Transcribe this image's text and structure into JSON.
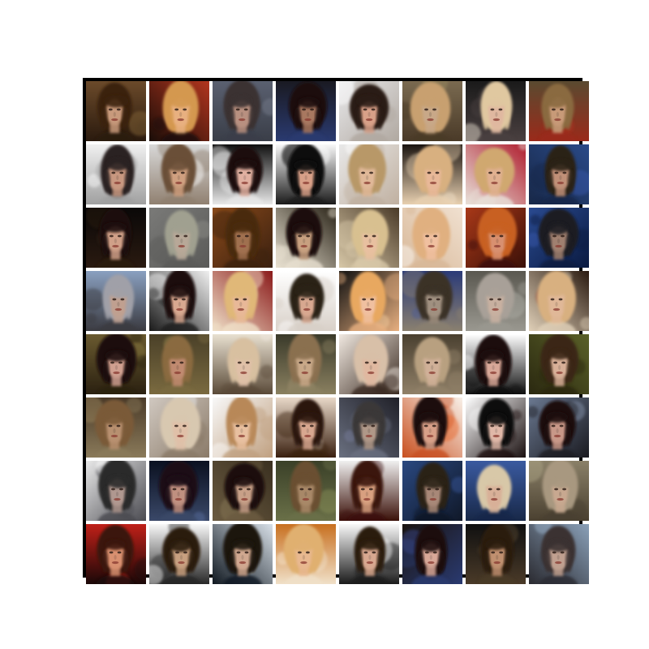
{
  "figure": {
    "rows": 8,
    "cols": 8,
    "frame_color": "#000000",
    "gutter_color": "#ffffff"
  },
  "tiles": [
    {
      "bg": "#6b4a2a",
      "bg2": "#2a1a0e",
      "hair": "#3a2210",
      "skin": "#c89a7c",
      "accent": "#8a6a3a"
    },
    {
      "bg": "#b2351e",
      "bg2": "#1a0d08",
      "hair": "#d49850",
      "skin": "#e8b080",
      "accent": "#f0f0f0"
    },
    {
      "bg": "#5a6070",
      "bg2": "#3a3e48",
      "hair": "#3a3030",
      "skin": "#b89080",
      "accent": "#7a8090"
    },
    {
      "bg": "#1a1a22",
      "bg2": "#2a3a70",
      "hair": "#1a1010",
      "skin": "#a87860",
      "accent": "#3a4a90"
    },
    {
      "bg": "#e8e8ea",
      "bg2": "#b0a8a0",
      "hair": "#2a1a12",
      "skin": "#d8a088",
      "accent": "#ffffff"
    },
    {
      "bg": "#7a6a50",
      "bg2": "#4a3a28",
      "hair": "#c8a070",
      "skin": "#c8a888",
      "accent": "#9a8a60"
    },
    {
      "bg": "#1a1a1a",
      "bg2": "#4a4040",
      "hair": "#e0c8a0",
      "skin": "#e0b8a0",
      "accent": "#f0e8d8"
    },
    {
      "bg": "#5a4a30",
      "bg2": "#9a2a1a",
      "hair": "#8a6a40",
      "skin": "#c89a78",
      "accent": "#b03020"
    },
    {
      "bg": "#f0f0f0",
      "bg2": "#a0a0a0",
      "hair": "#2a2020",
      "skin": "#c89880",
      "accent": "#ffffff"
    },
    {
      "bg": "#d8d8d8",
      "bg2": "#908070",
      "hair": "#6a5038",
      "skin": "#d0a080",
      "accent": "#ffffff"
    },
    {
      "bg": "#101010",
      "bg2": "#e8e8e8",
      "hair": "#1a1010",
      "skin": "#e0b0a0",
      "accent": "#f0f0f0"
    },
    {
      "bg": "#f8f8f8",
      "bg2": "#1a1a1a",
      "hair": "#0a0808",
      "skin": "#d8a088",
      "accent": "#ffffff"
    },
    {
      "bg": "#e8e8e8",
      "bg2": "#c0b0a0",
      "hair": "#b89868",
      "skin": "#e0b898",
      "accent": "#ffffff"
    },
    {
      "bg": "#1a1410",
      "bg2": "#e8d0b0",
      "hair": "#d8b080",
      "skin": "#e8b898",
      "accent": "#f0e0c8"
    },
    {
      "bg": "#b02030",
      "bg2": "#e8e0d8",
      "hair": "#d0a870",
      "skin": "#e0b090",
      "accent": "#c83040"
    },
    {
      "bg": "#2a4a88",
      "bg2": "#182848",
      "hair": "#2a2018",
      "skin": "#c09078",
      "accent": "#3a5ab0"
    },
    {
      "bg": "#0a0808",
      "bg2": "#2a1a10",
      "hair": "#1a1008",
      "skin": "#d0a088",
      "accent": "#3a2a1a"
    },
    {
      "bg": "#7a7a78",
      "bg2": "#5a5a58",
      "hair": "#a0a090",
      "skin": "#b8a898",
      "accent": "#90908a"
    },
    {
      "bg": "#8a4a1a",
      "bg2": "#3a2010",
      "hair": "#4a2a10",
      "skin": "#a07050",
      "accent": "#b06a2a"
    },
    {
      "bg": "#2a2418",
      "bg2": "#e8e0d0",
      "hair": "#1a1008",
      "skin": "#c8a080",
      "accent": "#f0e8d8"
    },
    {
      "bg": "#4a3a28",
      "bg2": "#d8c8a8",
      "hair": "#d8c090",
      "skin": "#e8c0a0",
      "accent": "#f0e0c0"
    },
    {
      "bg": "#f0e0d0",
      "bg2": "#d8b898",
      "hair": "#e0b080",
      "skin": "#f0c0a0",
      "accent": "#ffffff"
    },
    {
      "bg": "#a83818",
      "bg2": "#3a1008",
      "hair": "#c86020",
      "skin": "#d89070",
      "accent": "#e07030"
    },
    {
      "bg": "#2a4a90",
      "bg2": "#0a1a40",
      "hair": "#1a1a20",
      "skin": "#a08070",
      "accent": "#3a5ab0"
    },
    {
      "bg": "#8aa0c0",
      "bg2": "#3a3a40",
      "hair": "#a0a0a8",
      "skin": "#c0a090",
      "accent": "#c0d0e8"
    },
    {
      "bg": "#f0f0f0",
      "bg2": "#1a1a1a",
      "hair": "#1a1010",
      "skin": "#d8a890",
      "accent": "#ffffff"
    },
    {
      "bg": "#8a1a1a",
      "bg2": "#f0e0c8",
      "hair": "#e0b878",
      "skin": "#e8b898",
      "accent": "#fff0d8"
    },
    {
      "bg": "#ffffff",
      "bg2": "#d8d0c8",
      "hair": "#2a2018",
      "skin": "#d8a890",
      "accent": "#ffffff"
    },
    {
      "bg": "#101010",
      "bg2": "#e8b080",
      "hair": "#e8a860",
      "skin": "#f0c0a0",
      "accent": "#f8d0a0"
    },
    {
      "bg": "#2a3a78",
      "bg2": "#8a8070",
      "hair": "#3a3028",
      "skin": "#a09080",
      "accent": "#4a5a98"
    },
    {
      "bg": "#5a5850",
      "bg2": "#9a9890",
      "hair": "#a8a098",
      "skin": "#c8b0a0",
      "accent": "#b0b0a8"
    },
    {
      "bg": "#2a1a10",
      "bg2": "#e0d0b8",
      "hair": "#d8b080",
      "skin": "#e0b898",
      "accent": "#8a2a1a"
    },
    {
      "bg": "#6a5a30",
      "bg2": "#2a2010",
      "hair": "#1a1008",
      "skin": "#d0a090",
      "accent": "#8a7a40"
    },
    {
      "bg": "#4a4028",
      "bg2": "#7a6a40",
      "hair": "#8a6a40",
      "skin": "#c08a70",
      "accent": "#9a8a50"
    },
    {
      "bg": "#e8e0d0",
      "bg2": "#5a4a38",
      "hair": "#d8c0a0",
      "skin": "#e0c0a8",
      "accent": "#f0e8e0"
    },
    {
      "bg": "#3a3a2a",
      "bg2": "#8a8060",
      "hair": "#8a7050",
      "skin": "#c8a888",
      "accent": "#a09070"
    },
    {
      "bg": "#f0e8e0",
      "bg2": "#3a2a20",
      "hair": "#d8c0a8",
      "skin": "#e0b8a0",
      "accent": "#fff8f0"
    },
    {
      "bg": "#4a4030",
      "bg2": "#908068",
      "hair": "#b8a080",
      "skin": "#d0b098",
      "accent": "#a09078"
    },
    {
      "bg": "#ffffff",
      "bg2": "#101010",
      "hair": "#1a1010",
      "skin": "#d8a898",
      "accent": "#f8f8f8"
    },
    {
      "bg": "#5a6028",
      "bg2": "#2a2810",
      "hair": "#3a2818",
      "skin": "#d8b098",
      "accent": "#8a8a3a"
    },
    {
      "bg": "#4a3a28",
      "bg2": "#8a7a5a",
      "hair": "#7a5a38",
      "skin": "#b89070",
      "accent": "#a08a60"
    },
    {
      "bg": "#d0c8c0",
      "bg2": "#8a7a68",
      "hair": "#d8c8b0",
      "skin": "#e0c0a8",
      "accent": "#f0f0f0"
    },
    {
      "bg": "#f8f8f8",
      "bg2": "#c0a080",
      "hair": "#b88858",
      "skin": "#e8c0a0",
      "accent": "#ffffff"
    },
    {
      "bg": "#e8d8c8",
      "bg2": "#3a2010",
      "hair": "#2a1810",
      "skin": "#d8a890",
      "accent": "#f0e8e0"
    },
    {
      "bg": "#202028",
      "bg2": "#6a7080",
      "hair": "#3a3838",
      "skin": "#b09888",
      "accent": "#7a80a0"
    },
    {
      "bg": "#f8f0e8",
      "bg2": "#c85020",
      "hair": "#1a1008",
      "skin": "#d8a088",
      "accent": "#e86020"
    },
    {
      "bg": "#ffffff",
      "bg2": "#1a1010",
      "hair": "#0a0808",
      "skin": "#e0b8a8",
      "accent": "#f8f8f8"
    },
    {
      "bg": "#6a7890",
      "bg2": "#1a1a20",
      "hair": "#1a1010",
      "skin": "#c89888",
      "accent": "#8a98b0"
    },
    {
      "bg": "#e8e8e8",
      "bg2": "#4a4a50",
      "hair": "#2a2a2a",
      "skin": "#b09890",
      "accent": "#ffffff"
    },
    {
      "bg": "#0a1020",
      "bg2": "#3a4868",
      "hair": "#1a1018",
      "skin": "#c09080",
      "accent": "#5a70a0"
    },
    {
      "bg": "#3a3020",
      "bg2": "#6a5a40",
      "hair": "#1a1008",
      "skin": "#c8a088",
      "accent": "#8a7a58"
    },
    {
      "bg": "#3a4028",
      "bg2": "#6a7048",
      "hair": "#6a5030",
      "skin": "#a88868",
      "accent": "#8a9058"
    },
    {
      "bg": "#f0f0f0",
      "bg2": "#3a1008",
      "hair": "#3a1808",
      "skin": "#d8a080",
      "accent": "#ffffff"
    },
    {
      "bg": "#2a4880",
      "bg2": "#101828",
      "hair": "#2a2018",
      "skin": "#a88878",
      "accent": "#3a5aa0"
    },
    {
      "bg": "#3a5aa0",
      "bg2": "#182848",
      "hair": "#d8c8a8",
      "skin": "#d8b098",
      "accent": "#4a6ab8"
    },
    {
      "bg": "#8a8068",
      "bg2": "#4a4030",
      "hair": "#a89880",
      "skin": "#c8a890",
      "accent": "#b0a888"
    },
    {
      "bg": "#c02018",
      "bg2": "#1a0808",
      "hair": "#3a1808",
      "skin": "#d89070",
      "accent": "#e83020"
    },
    {
      "bg": "#f8f8f8",
      "bg2": "#282828",
      "hair": "#2a1a10",
      "skin": "#c8a080",
      "accent": "#ffffff"
    },
    {
      "bg": "#d8e0e8",
      "bg2": "#101820",
      "hair": "#1a1410",
      "skin": "#d0a890",
      "accent": "#e8f0f8"
    },
    {
      "bg": "#c87020",
      "bg2": "#f0e0c8",
      "hair": "#e0b070",
      "skin": "#e8b890",
      "accent": "#f8e8d0"
    },
    {
      "bg": "#f8f8f8",
      "bg2": "#1a1a1a",
      "hair": "#2a1a10",
      "skin": "#d8a890",
      "accent": "#ffffff"
    },
    {
      "bg": "#1a1410",
      "bg2": "#2a3a70",
      "hair": "#1a1010",
      "skin": "#d8a898",
      "accent": "#3a4a90"
    },
    {
      "bg": "#101010",
      "bg2": "#4a3a28",
      "hair": "#2a1a10",
      "skin": "#c09070",
      "accent": "#5a4a30"
    },
    {
      "bg": "#8aa0b8",
      "bg2": "#2a2a30",
      "hair": "#3a3030",
      "skin": "#c0a090",
      "accent": "#a0b8d0"
    }
  ]
}
